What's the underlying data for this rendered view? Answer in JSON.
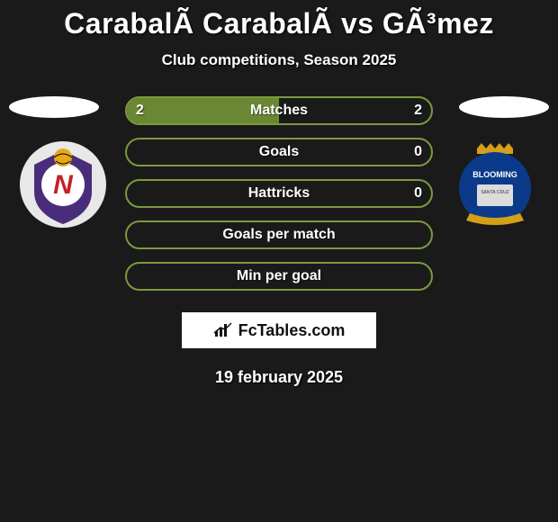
{
  "title": "CarabalÃ CarabalÃ vs GÃ³mez",
  "subtitle": "Club competitions, Season 2025",
  "brand": "FcTables.com",
  "date": "19 february 2025",
  "colors": {
    "rowBorder": "#7b9a3d",
    "rowFill": "#6a8834",
    "background": "#1a1a1a",
    "text": "#ffffff"
  },
  "rows": [
    {
      "label": "Matches",
      "left": "2",
      "right": "2",
      "splitPct": 50,
      "showVals": true
    },
    {
      "label": "Goals",
      "left": "",
      "right": "0",
      "splitPct": 0,
      "showVals": true
    },
    {
      "label": "Hattricks",
      "left": "",
      "right": "0",
      "splitPct": 0,
      "showVals": true
    },
    {
      "label": "Goals per match",
      "left": "",
      "right": "",
      "splitPct": 0,
      "showVals": false
    },
    {
      "label": "Min per goal",
      "left": "",
      "right": "",
      "splitPct": 0,
      "showVals": false
    }
  ],
  "badges": {
    "left": {
      "bgCircle": "#e8e8e8",
      "shield": "#4a2d7a",
      "letterBg": "#ffffff",
      "letter": "N",
      "letterColor": "#c62028",
      "ball": "#e6a817"
    },
    "right": {
      "bg": "#0b3a8a",
      "crown": "#d4a017",
      "banner": "#dcdcdc",
      "textTop": "BLOOMING"
    }
  }
}
